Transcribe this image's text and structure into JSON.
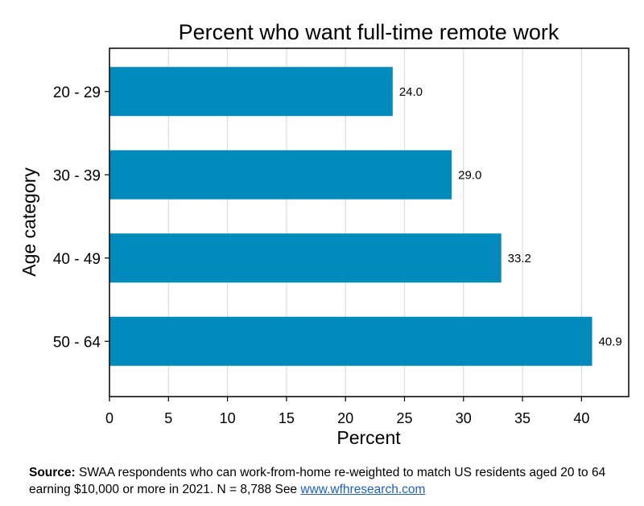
{
  "chart_data": {
    "type": "bar",
    "orientation": "horizontal",
    "title": "Percent who want full-time remote work",
    "xlabel": "Percent",
    "ylabel": "Age category",
    "categories": [
      "20 - 29",
      "30 - 39",
      "40 - 49",
      "50 - 64"
    ],
    "values": [
      24.0,
      29.0,
      33.2,
      40.9
    ],
    "value_labels": [
      "24.0",
      "29.0",
      "33.2",
      "40.9"
    ],
    "xlim": [
      0,
      44
    ],
    "x_ticks": [
      0,
      5,
      10,
      15,
      20,
      25,
      30,
      35,
      40
    ],
    "grid": true,
    "bar_color": "#008bbc"
  },
  "source": {
    "label": "Source:",
    "text": "SWAA respondents who can work-from-home re-weighted to match US residents aged 20 to 64 earning $10,000 or more in 2021. N = 8,788  See ",
    "link_text": "www.wfhresearch.com"
  }
}
